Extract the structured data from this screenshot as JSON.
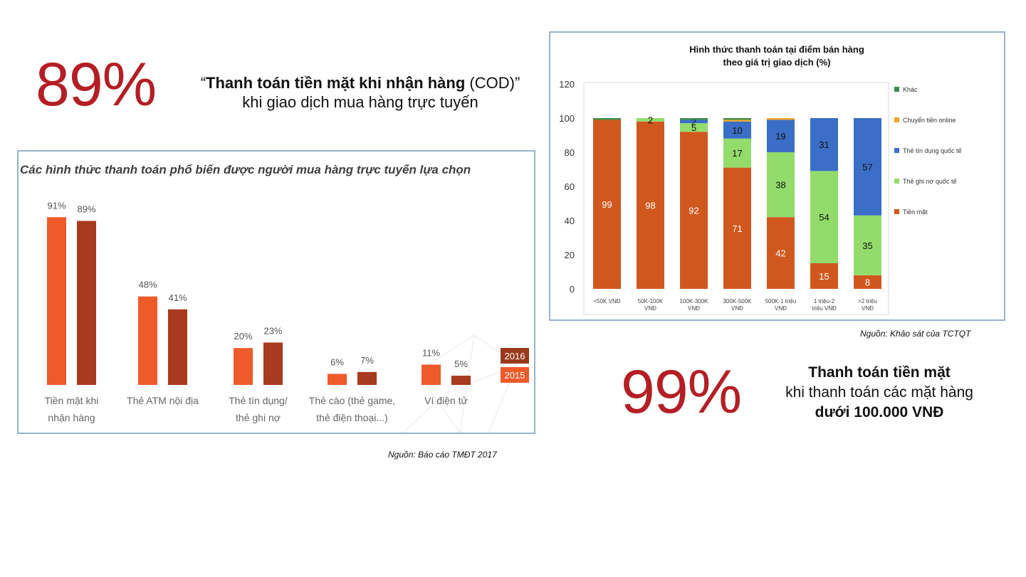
{
  "stat_top": {
    "percent": "89%",
    "line1_bold": "Thanh toán tiền mặt khi nhận hàng",
    "line1_normal": " (COD)",
    "line2": "khi giao dịch mua hàng trực tuyến"
  },
  "stat_bottom": {
    "percent": "99%",
    "line1": "Thanh toán tiền mặt",
    "line2": "khi thanh toán các mặt hàng",
    "line3": "dưới 100.000 VNĐ"
  },
  "left_source": "Nguồn: Báo cáo TMĐT 2017",
  "right_source": "Nguồn: Khảo sát của TCTQT",
  "chart_data": [
    {
      "type": "bar",
      "title": "Các hình thức thanh toán phổ biến được người mua hàng trực tuyến lựa chọn",
      "categories": [
        [
          "Tiền mặt khi",
          "nhận hàng"
        ],
        [
          "Thẻ ATM nội địa"
        ],
        [
          "Thẻ tín dụng/",
          "thẻ ghi nợ"
        ],
        [
          "Thẻ cào (thẻ game,",
          "thẻ điện thoại...)"
        ],
        [
          "Ví điện tử"
        ]
      ],
      "series": [
        {
          "name": "2016",
          "values": [
            91,
            48,
            20,
            6,
            11
          ],
          "color": "#ef5a2a"
        },
        {
          "name": "2015",
          "values": [
            89,
            41,
            23,
            7,
            5
          ],
          "color": "#a83a1e"
        }
      ],
      "ylim": [
        0,
        100
      ],
      "value_suffix": "%",
      "legend_position": "right"
    },
    {
      "type": "bar",
      "stacked": true,
      "title": "Hình thức thanh toán tại điểm bán hàng theo giá trị giao dịch (%)",
      "title_lines": [
        "Hình thức thanh toán tại điểm bán hàng",
        "theo giá trị giao dịch (%)"
      ],
      "categories": [
        [
          "<50K VNĐ"
        ],
        [
          "50K-100K",
          "VNĐ"
        ],
        [
          "100K-300K",
          "VNĐ"
        ],
        [
          "300K-500K",
          "VNĐ"
        ],
        [
          "500K-1 triệu",
          "VNĐ"
        ],
        [
          "1 triệu-2",
          "triệu VNĐ"
        ],
        [
          ">2 triệu",
          "VNĐ"
        ]
      ],
      "series": [
        {
          "name": "Tiền mặt",
          "values": [
            99,
            98,
            92,
            71,
            42,
            15,
            8
          ],
          "color": "#d0581e"
        },
        {
          "name": "Thẻ ghi nợ quốc tế",
          "values": [
            0,
            2,
            5,
            17,
            38,
            54,
            35
          ],
          "color": "#93dc6c"
        },
        {
          "name": "Thẻ tín dụng quốc tế",
          "values": [
            0,
            0,
            2,
            10,
            19,
            31,
            57
          ],
          "color": "#3b6ec7"
        },
        {
          "name": "Chuyển tiền online",
          "values": [
            0,
            0,
            0,
            1,
            1,
            0,
            0
          ],
          "color": "#f2a228"
        },
        {
          "name": "Khác",
          "values": [
            1,
            0,
            1,
            1,
            0,
            0,
            0
          ],
          "color": "#3c8c48"
        }
      ],
      "ylim": [
        0,
        120
      ],
      "yticks": [
        0,
        20,
        40,
        60,
        80,
        100,
        120
      ],
      "gridlines": false,
      "legend_position": "right"
    }
  ]
}
